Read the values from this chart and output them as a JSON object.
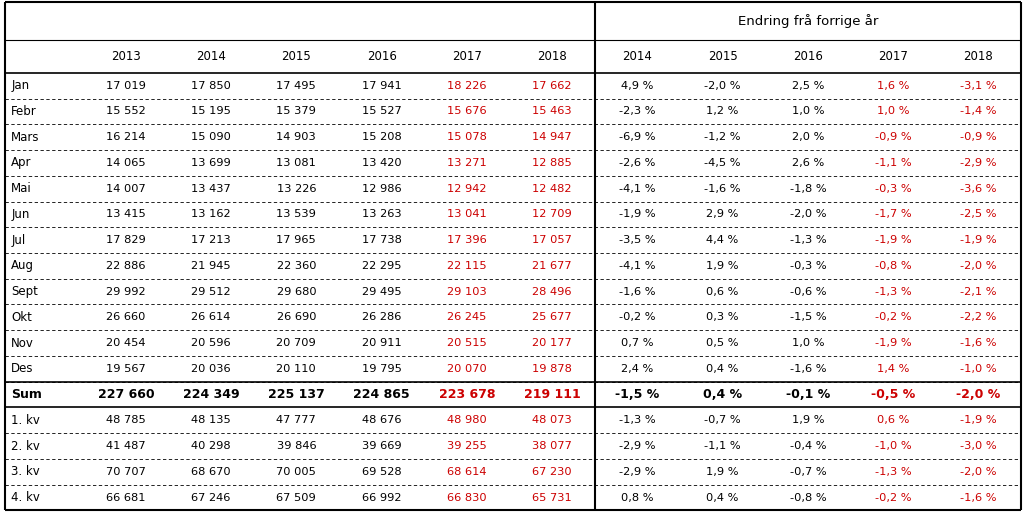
{
  "header_years": [
    "2013",
    "2014",
    "2015",
    "2016",
    "2017",
    "2018"
  ],
  "header_change_years": [
    "2014",
    "2015",
    "2016",
    "2017",
    "2018"
  ],
  "header_change_label": "Endring frå forrige år",
  "rows": [
    {
      "label": "Jan",
      "vals": [
        "17 019",
        "17 850",
        "17 495",
        "17 941",
        "18 226",
        "17 662"
      ],
      "changes": [
        "4,9 %",
        "-2,0 %",
        "2,5 %",
        "1,6 %",
        "-3,1 %"
      ],
      "red_vals": [
        4,
        5
      ],
      "red_changes": [
        3,
        4
      ]
    },
    {
      "label": "Febr",
      "vals": [
        "15 552",
        "15 195",
        "15 379",
        "15 527",
        "15 676",
        "15 463"
      ],
      "changes": [
        "-2,3 %",
        "1,2 %",
        "1,0 %",
        "1,0 %",
        "-1,4 %"
      ],
      "red_vals": [
        4,
        5
      ],
      "red_changes": [
        3,
        4
      ]
    },
    {
      "label": "Mars",
      "vals": [
        "16 214",
        "15 090",
        "14 903",
        "15 208",
        "15 078",
        "14 947"
      ],
      "changes": [
        "-6,9 %",
        "-1,2 %",
        "2,0 %",
        "-0,9 %",
        "-0,9 %"
      ],
      "red_vals": [
        4,
        5
      ],
      "red_changes": [
        3,
        4
      ]
    },
    {
      "label": "Apr",
      "vals": [
        "14 065",
        "13 699",
        "13 081",
        "13 420",
        "13 271",
        "12 885"
      ],
      "changes": [
        "-2,6 %",
        "-4,5 %",
        "2,6 %",
        "-1,1 %",
        "-2,9 %"
      ],
      "red_vals": [
        4,
        5
      ],
      "red_changes": [
        3,
        4
      ]
    },
    {
      "label": "Mai",
      "vals": [
        "14 007",
        "13 437",
        "13 226",
        "12 986",
        "12 942",
        "12 482"
      ],
      "changes": [
        "-4,1 %",
        "-1,6 %",
        "-1,8 %",
        "-0,3 %",
        "-3,6 %"
      ],
      "red_vals": [
        4,
        5
      ],
      "red_changes": [
        3,
        4
      ]
    },
    {
      "label": "Jun",
      "vals": [
        "13 415",
        "13 162",
        "13 539",
        "13 263",
        "13 041",
        "12 709"
      ],
      "changes": [
        "-1,9 %",
        "2,9 %",
        "-2,0 %",
        "-1,7 %",
        "-2,5 %"
      ],
      "red_vals": [
        4,
        5
      ],
      "red_changes": [
        3,
        4
      ]
    },
    {
      "label": "Jul",
      "vals": [
        "17 829",
        "17 213",
        "17 965",
        "17 738",
        "17 396",
        "17 057"
      ],
      "changes": [
        "-3,5 %",
        "4,4 %",
        "-1,3 %",
        "-1,9 %",
        "-1,9 %"
      ],
      "red_vals": [
        4,
        5
      ],
      "red_changes": [
        3,
        4
      ]
    },
    {
      "label": "Aug",
      "vals": [
        "22 886",
        "21 945",
        "22 360",
        "22 295",
        "22 115",
        "21 677"
      ],
      "changes": [
        "-4,1 %",
        "1,9 %",
        "-0,3 %",
        "-0,8 %",
        "-2,0 %"
      ],
      "red_vals": [
        4,
        5
      ],
      "red_changes": [
        3,
        4
      ]
    },
    {
      "label": "Sept",
      "vals": [
        "29 992",
        "29 512",
        "29 680",
        "29 495",
        "29 103",
        "28 496"
      ],
      "changes": [
        "-1,6 %",
        "0,6 %",
        "-0,6 %",
        "-1,3 %",
        "-2,1 %"
      ],
      "red_vals": [
        4,
        5
      ],
      "red_changes": [
        3,
        4
      ]
    },
    {
      "label": "Okt",
      "vals": [
        "26 660",
        "26 614",
        "26 690",
        "26 286",
        "26 245",
        "25 677"
      ],
      "changes": [
        "-0,2 %",
        "0,3 %",
        "-1,5 %",
        "-0,2 %",
        "-2,2 %"
      ],
      "red_vals": [
        4,
        5
      ],
      "red_changes": [
        3,
        4
      ]
    },
    {
      "label": "Nov",
      "vals": [
        "20 454",
        "20 596",
        "20 709",
        "20 911",
        "20 515",
        "20 177"
      ],
      "changes": [
        "0,7 %",
        "0,5 %",
        "1,0 %",
        "-1,9 %",
        "-1,6 %"
      ],
      "red_vals": [
        4,
        5
      ],
      "red_changes": [
        3,
        4
      ]
    },
    {
      "label": "Des",
      "vals": [
        "19 567",
        "20 036",
        "20 110",
        "19 795",
        "20 070",
        "19 878"
      ],
      "changes": [
        "2,4 %",
        "0,4 %",
        "-1,6 %",
        "1,4 %",
        "-1,0 %"
      ],
      "red_vals": [
        4,
        5
      ],
      "red_changes": [
        3,
        4
      ]
    }
  ],
  "sum_row": {
    "label": "Sum",
    "vals": [
      "227 660",
      "224 349",
      "225 137",
      "224 865",
      "223 678",
      "219 111"
    ],
    "changes": [
      "-1,5 %",
      "0,4 %",
      "-0,1 %",
      "-0,5 %",
      "-2,0 %"
    ],
    "red_vals": [
      4,
      5
    ],
    "red_changes": [
      3,
      4
    ]
  },
  "quarter_rows": [
    {
      "label": "1. kv",
      "vals": [
        "48 785",
        "48 135",
        "47 777",
        "48 676",
        "48 980",
        "48 073"
      ],
      "changes": [
        "-1,3 %",
        "-0,7 %",
        "1,9 %",
        "0,6 %",
        "-1,9 %"
      ],
      "red_vals": [
        4,
        5
      ],
      "red_changes": [
        3,
        4
      ]
    },
    {
      "label": "2. kv",
      "vals": [
        "41 487",
        "40 298",
        "39 846",
        "39 669",
        "39 255",
        "38 077"
      ],
      "changes": [
        "-2,9 %",
        "-1,1 %",
        "-0,4 %",
        "-1,0 %",
        "-3,0 %"
      ],
      "red_vals": [
        4,
        5
      ],
      "red_changes": [
        3,
        4
      ]
    },
    {
      "label": "3. kv",
      "vals": [
        "70 707",
        "68 670",
        "70 005",
        "69 528",
        "68 614",
        "67 230"
      ],
      "changes": [
        "-2,9 %",
        "1,9 %",
        "-0,7 %",
        "-1,3 %",
        "-2,0 %"
      ],
      "red_vals": [
        4,
        5
      ],
      "red_changes": [
        3,
        4
      ]
    },
    {
      "label": "4. kv",
      "vals": [
        "66 681",
        "67 246",
        "67 509",
        "66 992",
        "66 830",
        "65 731"
      ],
      "changes": [
        "0,8 %",
        "0,4 %",
        "-0,8 %",
        "-0,2 %",
        "-1,6 %"
      ],
      "red_vals": [
        4,
        5
      ],
      "red_changes": [
        3,
        4
      ]
    }
  ],
  "black": "#000000",
  "red": "#CC0000",
  "white": "#FFFFFF"
}
